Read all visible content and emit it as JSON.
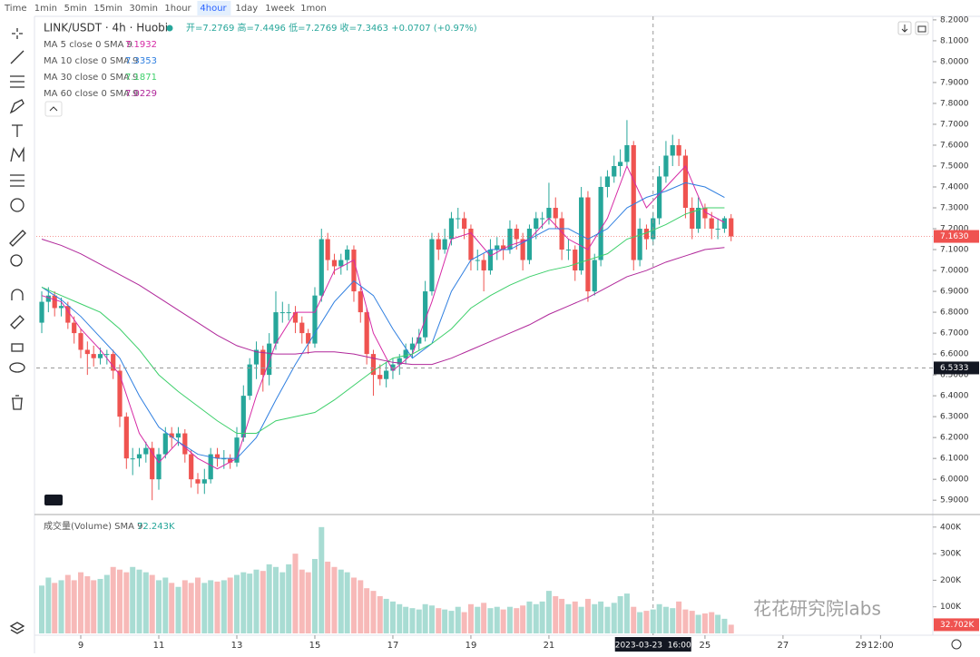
{
  "toolbar": {
    "intervals": [
      "Time",
      "1min",
      "5min",
      "15min",
      "30min",
      "1hour",
      "4hour",
      "1day",
      "1week",
      "1mon"
    ],
    "active": 6
  },
  "watermark": "花花研究院labs",
  "chart_data": [
    {
      "type": "candlestick",
      "title": "LINK/USDT · 4h · Huobi",
      "ohlc_text": "开=7.2769 高=7.4496 低=7.2769 收=7.3463 +0.0707 (+0.97%)",
      "up_color": "#26a69a",
      "down_color": "#ef5350",
      "x": [
        8,
        8.17,
        8.33,
        8.5,
        8.67,
        8.83,
        9,
        9.17,
        9.33,
        9.5,
        9.67,
        9.83,
        10,
        10.17,
        10.33,
        10.5,
        10.67,
        10.83,
        11,
        11.17,
        11.33,
        11.5,
        11.67,
        11.83,
        12,
        12.17,
        12.33,
        12.5,
        12.67,
        12.83,
        13,
        13.17,
        13.33,
        13.5,
        13.67,
        13.83,
        14,
        14.17,
        14.33,
        14.5,
        14.67,
        14.83,
        15,
        15.17,
        15.33,
        15.5,
        15.67,
        15.83,
        16,
        16.17,
        16.33,
        16.5,
        16.67,
        16.83,
        17,
        17.17,
        17.33,
        17.5,
        17.67,
        17.83,
        18,
        18.17,
        18.33,
        18.5,
        18.67,
        18.83,
        19,
        19.17,
        19.33,
        19.5,
        19.67,
        19.83,
        20,
        20.17,
        20.33,
        20.5,
        20.67,
        20.83,
        21,
        21.17,
        21.33,
        21.5,
        21.67,
        21.83,
        22,
        22.17,
        22.33,
        22.5,
        22.67,
        22.83,
        23,
        23.17,
        23.33,
        23.5,
        23.67,
        23.83,
        24,
        24.17,
        24.33,
        24.5,
        24.67,
        24.83,
        25,
        25.17,
        25.33,
        25.5,
        25.67
      ],
      "open": [
        6.75,
        6.85,
        6.88,
        6.82,
        6.83,
        6.75,
        6.7,
        6.62,
        6.6,
        6.58,
        6.6,
        6.6,
        6.52,
        6.3,
        6.1,
        6.1,
        6.12,
        6.15,
        6.0,
        6.12,
        6.22,
        6.2,
        6.22,
        6.12,
        6.0,
        5.98,
        6.0,
        6.12,
        6.1,
        6.1,
        6.08,
        6.2,
        6.4,
        6.55,
        6.62,
        6.5,
        6.65,
        6.8,
        6.8,
        6.8,
        6.75,
        6.7,
        6.65,
        6.88,
        7.15,
        7.05,
        7.02,
        7.05,
        7.1,
        6.9,
        6.8,
        6.6,
        6.5,
        6.48,
        6.52,
        6.55,
        6.58,
        6.62,
        6.65,
        6.68,
        6.9,
        7.15,
        7.1,
        7.15,
        7.25,
        7.25,
        7.2,
        7.05,
        7.05,
        7.0,
        7.1,
        7.12,
        7.1,
        7.2,
        7.15,
        7.05,
        7.2,
        7.25,
        7.25,
        7.3,
        7.25,
        7.1,
        7.1,
        7.0,
        7.35,
        6.9,
        7.05,
        7.4,
        7.45,
        7.5,
        7.52,
        7.6,
        7.05,
        7.2,
        7.15,
        7.25,
        7.45,
        7.55,
        7.6,
        7.55,
        7.3,
        7.2,
        7.3,
        7.25,
        7.2,
        7.2,
        7.25
      ],
      "high": [
        6.9,
        6.92,
        6.9,
        6.87,
        6.85,
        6.78,
        6.72,
        6.66,
        6.64,
        6.63,
        6.62,
        6.62,
        6.55,
        6.32,
        6.15,
        6.15,
        6.18,
        6.18,
        6.15,
        6.25,
        6.25,
        6.25,
        6.24,
        6.14,
        6.03,
        6.05,
        6.15,
        6.15,
        6.14,
        6.12,
        6.25,
        6.45,
        6.58,
        6.66,
        6.64,
        6.7,
        6.9,
        6.85,
        6.84,
        6.83,
        6.78,
        6.72,
        6.92,
        7.2,
        7.18,
        7.08,
        7.08,
        7.12,
        7.12,
        6.92,
        6.82,
        6.62,
        6.55,
        6.56,
        6.58,
        6.6,
        6.65,
        6.68,
        6.72,
        6.95,
        7.18,
        7.18,
        7.2,
        7.28,
        7.3,
        7.28,
        7.22,
        7.1,
        7.08,
        7.15,
        7.16,
        7.15,
        7.24,
        7.22,
        7.18,
        7.22,
        7.28,
        7.28,
        7.42,
        7.35,
        7.28,
        7.15,
        7.12,
        7.4,
        7.38,
        7.08,
        7.45,
        7.48,
        7.55,
        7.58,
        7.72,
        7.62,
        7.25,
        7.22,
        7.28,
        7.5,
        7.62,
        7.65,
        7.63,
        7.58,
        7.35,
        7.35,
        7.32,
        7.28,
        7.25,
        7.26,
        7.27
      ],
      "low": [
        6.7,
        6.8,
        6.78,
        6.78,
        6.72,
        6.65,
        6.58,
        6.5,
        6.54,
        6.55,
        6.55,
        6.48,
        6.25,
        6.05,
        6.02,
        6.06,
        6.08,
        5.9,
        5.95,
        6.1,
        6.15,
        6.16,
        6.08,
        5.96,
        5.93,
        5.93,
        5.98,
        6.06,
        6.05,
        6.05,
        6.06,
        6.18,
        6.38,
        6.48,
        6.42,
        6.45,
        6.62,
        6.75,
        6.76,
        6.7,
        6.65,
        6.6,
        6.63,
        6.85,
        7.0,
        6.98,
        6.98,
        7.0,
        6.85,
        6.75,
        6.55,
        6.4,
        6.45,
        6.44,
        6.48,
        6.5,
        6.55,
        6.58,
        6.62,
        6.66,
        6.88,
        7.05,
        7.08,
        7.12,
        7.2,
        7.15,
        7.0,
        7.0,
        6.9,
        6.98,
        7.05,
        7.05,
        7.08,
        7.1,
        7.0,
        7.03,
        7.15,
        7.2,
        7.22,
        7.2,
        7.05,
        7.05,
        6.95,
        6.98,
        6.85,
        6.88,
        7.02,
        7.35,
        7.42,
        7.45,
        7.5,
        7.0,
        7.02,
        7.1,
        7.12,
        7.22,
        7.42,
        7.5,
        7.5,
        7.25,
        7.15,
        7.18,
        7.2,
        7.15,
        7.15,
        7.18,
        7.14
      ],
      "close": [
        6.85,
        6.88,
        6.82,
        6.83,
        6.75,
        6.7,
        6.62,
        6.6,
        6.58,
        6.6,
        6.6,
        6.52,
        6.3,
        6.1,
        6.1,
        6.12,
        6.15,
        6.0,
        6.12,
        6.22,
        6.2,
        6.22,
        6.12,
        6.0,
        5.98,
        6.0,
        6.12,
        6.1,
        6.1,
        6.08,
        6.2,
        6.4,
        6.55,
        6.62,
        6.5,
        6.65,
        6.8,
        6.8,
        6.8,
        6.75,
        6.7,
        6.65,
        6.88,
        7.15,
        7.05,
        7.02,
        7.05,
        7.1,
        6.9,
        6.8,
        6.6,
        6.5,
        6.48,
        6.52,
        6.55,
        6.58,
        6.62,
        6.65,
        6.68,
        6.9,
        7.15,
        7.1,
        7.15,
        7.25,
        7.25,
        7.2,
        7.05,
        7.05,
        7.0,
        7.1,
        7.12,
        7.1,
        7.2,
        7.15,
        7.05,
        7.2,
        7.25,
        7.25,
        7.3,
        7.25,
        7.1,
        7.1,
        7.0,
        7.35,
        6.9,
        7.05,
        7.4,
        7.45,
        7.5,
        7.52,
        7.6,
        7.05,
        7.2,
        7.15,
        7.25,
        7.45,
        7.55,
        7.6,
        7.55,
        7.3,
        7.2,
        7.3,
        7.25,
        7.2,
        7.2,
        7.25,
        7.163
      ],
      "lines": [
        {
          "name": "MA 5 close 0 SMA 9",
          "value": 7.1932,
          "color": "#d62aa5",
          "x": [
            8,
            8.5,
            9,
            9.5,
            10,
            10.5,
            11,
            11.5,
            12,
            12.5,
            13,
            13.5,
            14,
            14.5,
            15,
            15.5,
            16,
            16.5,
            17,
            17.5,
            18,
            18.5,
            19,
            19.5,
            20,
            20.5,
            21,
            21.5,
            22,
            22.5,
            23,
            23.5,
            24,
            24.5,
            25,
            25.5
          ],
          "values": [
            6.88,
            6.85,
            6.72,
            6.62,
            6.5,
            6.22,
            6.08,
            6.18,
            6.1,
            6.05,
            6.1,
            6.4,
            6.65,
            6.8,
            6.8,
            7.0,
            7.05,
            6.7,
            6.52,
            6.6,
            6.85,
            7.15,
            7.18,
            7.07,
            7.12,
            7.15,
            7.25,
            7.15,
            7.1,
            7.25,
            7.5,
            7.3,
            7.4,
            7.5,
            7.28,
            7.23
          ]
        },
        {
          "name": "MA 10 close 0 SMA 9",
          "value": 7.3353,
          "color": "#2f7fe0",
          "x": [
            8,
            8.5,
            9,
            9.5,
            10,
            10.5,
            11,
            11.5,
            12,
            12.5,
            13,
            13.5,
            14,
            14.5,
            15,
            15.5,
            16,
            16.5,
            17,
            17.5,
            18,
            18.5,
            19,
            19.5,
            20,
            20.5,
            21,
            21.5,
            22,
            22.5,
            23,
            23.5,
            24,
            24.5,
            25,
            25.5
          ],
          "values": [
            6.92,
            6.86,
            6.78,
            6.68,
            6.58,
            6.4,
            6.25,
            6.18,
            6.12,
            6.1,
            6.1,
            6.2,
            6.38,
            6.55,
            6.7,
            6.85,
            6.95,
            6.88,
            6.72,
            6.58,
            6.65,
            6.9,
            7.05,
            7.1,
            7.1,
            7.15,
            7.2,
            7.2,
            7.15,
            7.2,
            7.3,
            7.35,
            7.38,
            7.42,
            7.4,
            7.35
          ]
        },
        {
          "name": "MA 30 close 0 SMA 9",
          "value": 7.1871,
          "color": "#3ccf6a",
          "x": [
            8,
            8.5,
            9,
            9.5,
            10,
            10.5,
            11,
            11.5,
            12,
            12.5,
            13,
            13.5,
            14,
            14.5,
            15,
            15.5,
            16,
            16.5,
            17,
            17.5,
            18,
            18.5,
            19,
            19.5,
            20,
            20.5,
            21,
            21.5,
            22,
            22.5,
            23,
            23.5,
            24,
            24.5,
            25,
            25.5
          ],
          "values": [
            6.92,
            6.88,
            6.84,
            6.8,
            6.72,
            6.62,
            6.5,
            6.42,
            6.35,
            6.28,
            6.22,
            6.22,
            6.28,
            6.3,
            6.32,
            6.38,
            6.45,
            6.52,
            6.58,
            6.6,
            6.65,
            6.72,
            6.82,
            6.88,
            6.93,
            6.97,
            7.0,
            7.02,
            7.05,
            7.08,
            7.15,
            7.18,
            7.22,
            7.27,
            7.3,
            7.3
          ]
        },
        {
          "name": "MA 60 close 0 SMA 9",
          "value": 7.0229,
          "color": "#b0279a",
          "x": [
            8,
            8.5,
            9,
            9.5,
            10,
            10.5,
            11,
            11.5,
            12,
            12.5,
            13,
            13.5,
            14,
            14.5,
            15,
            15.5,
            16,
            16.5,
            17,
            17.5,
            18,
            18.5,
            19,
            19.5,
            20,
            20.5,
            21,
            21.5,
            22,
            22.5,
            23,
            23.5,
            24,
            24.5,
            25,
            25.5
          ],
          "values": [
            7.15,
            7.12,
            7.08,
            7.03,
            6.98,
            6.93,
            6.87,
            6.81,
            6.75,
            6.69,
            6.64,
            6.61,
            6.6,
            6.6,
            6.61,
            6.61,
            6.6,
            6.58,
            6.56,
            6.55,
            6.55,
            6.58,
            6.62,
            6.66,
            6.7,
            6.74,
            6.79,
            6.83,
            6.87,
            6.92,
            6.97,
            7.0,
            7.04,
            7.07,
            7.1,
            7.11
          ]
        }
      ],
      "xlim": [
        7.86,
        30.84
      ],
      "xticks": [
        9,
        11,
        13,
        15,
        17,
        19,
        21,
        25,
        27,
        29,
        {
          "value": 29.5,
          "label": "12:00"
        }
      ],
      "ylim": [
        5.84,
        8.23
      ],
      "yticks": [
        {
          "value": 8.2,
          "label": "8.2000"
        },
        {
          "value": 8.1,
          "label": "8.1000"
        },
        {
          "value": 8.0,
          "label": "8.0000"
        },
        {
          "value": 7.9,
          "label": "7.9000"
        },
        {
          "value": 7.8,
          "label": "7.8000"
        },
        {
          "value": 7.7,
          "label": "7.7000"
        },
        {
          "value": 7.6,
          "label": "7.6000"
        },
        {
          "value": 7.5,
          "label": "7.5000"
        },
        {
          "value": 7.4,
          "label": "7.4000"
        },
        {
          "value": 7.3,
          "label": "7.3000"
        },
        {
          "value": 7.2,
          "label": "7.2000"
        },
        {
          "value": 7.1,
          "label": "7.1000"
        },
        {
          "value": 7.0,
          "label": "7.0000"
        },
        {
          "value": 6.9,
          "label": "6.9000"
        },
        {
          "value": 6.8,
          "label": "6.8000"
        },
        {
          "value": 6.7,
          "label": "6.7000"
        },
        {
          "value": 6.6,
          "label": "6.6000"
        },
        {
          "value": 6.5,
          "label": "6.5000"
        },
        {
          "value": 6.4,
          "label": "6.4000"
        },
        {
          "value": 6.3,
          "label": "6.3000"
        },
        {
          "value": 6.2,
          "label": "6.2000"
        },
        {
          "value": 6.1,
          "label": "6.1000"
        },
        {
          "value": 6.0,
          "label": "6.0000"
        },
        {
          "value": 5.9,
          "label": "5.9000"
        }
      ],
      "last_price": {
        "value": 7.163,
        "label": "7.1630"
      },
      "crosshair": {
        "x": {
          "value": 23.67,
          "label": "2023-03-23  16:00"
        },
        "y": 6.5333
      }
    },
    {
      "type": "bar",
      "title": "成交量(Volume) SMA 9",
      "sma": {
        "value": 72.243,
        "label": "72.243K"
      },
      "last": {
        "value": 32.702,
        "label": "32.702K"
      },
      "up_color": "#a8dcd3",
      "down_color": "#f7b9b8",
      "values": [
        180,
        210,
        190,
        200,
        220,
        200,
        230,
        215,
        200,
        205,
        220,
        250,
        240,
        230,
        250,
        240,
        230,
        220,
        200,
        210,
        190,
        175,
        200,
        190,
        210,
        190,
        200,
        195,
        200,
        210,
        220,
        230,
        225,
        240,
        235,
        260,
        250,
        230,
        260,
        300,
        240,
        230,
        280,
        400,
        270,
        250,
        240,
        230,
        210,
        200,
        170,
        160,
        140,
        130,
        120,
        110,
        100,
        95,
        90,
        110,
        105,
        95,
        90,
        85,
        100,
        80,
        110,
        100,
        115,
        95,
        100,
        90,
        100,
        95,
        105,
        120,
        110,
        120,
        160,
        140,
        130,
        110,
        120,
        100,
        130,
        110,
        120,
        100,
        115,
        140,
        150,
        100,
        80,
        85,
        90,
        110,
        100,
        95,
        120,
        90,
        85,
        70,
        75,
        80,
        70,
        55,
        32.702
      ],
      "ylim": [
        0,
        437
      ],
      "yticks": [
        {
          "value": 400,
          "label": "400K"
        },
        {
          "value": 300,
          "label": "300K"
        },
        {
          "value": 200,
          "label": "200K"
        },
        {
          "value": 100,
          "label": "100K"
        }
      ]
    }
  ]
}
